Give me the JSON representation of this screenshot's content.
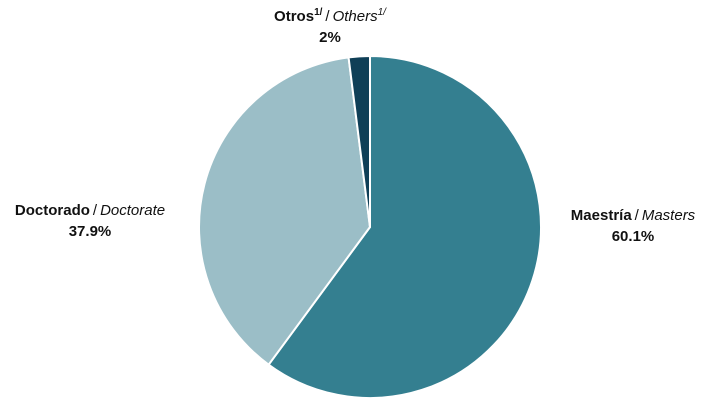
{
  "chart_data": {
    "type": "pie",
    "slices": [
      {
        "label_es": "Maestría",
        "label_en": "Masters",
        "value": 60.1,
        "value_label": "60.1%",
        "color": "#347f90"
      },
      {
        "label_es": "Doctorado",
        "label_en": "Doctorate",
        "value": 37.9,
        "value_label": "37.9%",
        "color": "#9bbec7"
      },
      {
        "label_es": "Otros",
        "label_en": "Others",
        "footnote": "1/",
        "value": 2,
        "value_label": "2%",
        "color": "#0f3f57"
      }
    ],
    "separator": "/",
    "start": "12 o'clock",
    "direction": "clockwise",
    "slice_border_color": "#ffffff"
  }
}
